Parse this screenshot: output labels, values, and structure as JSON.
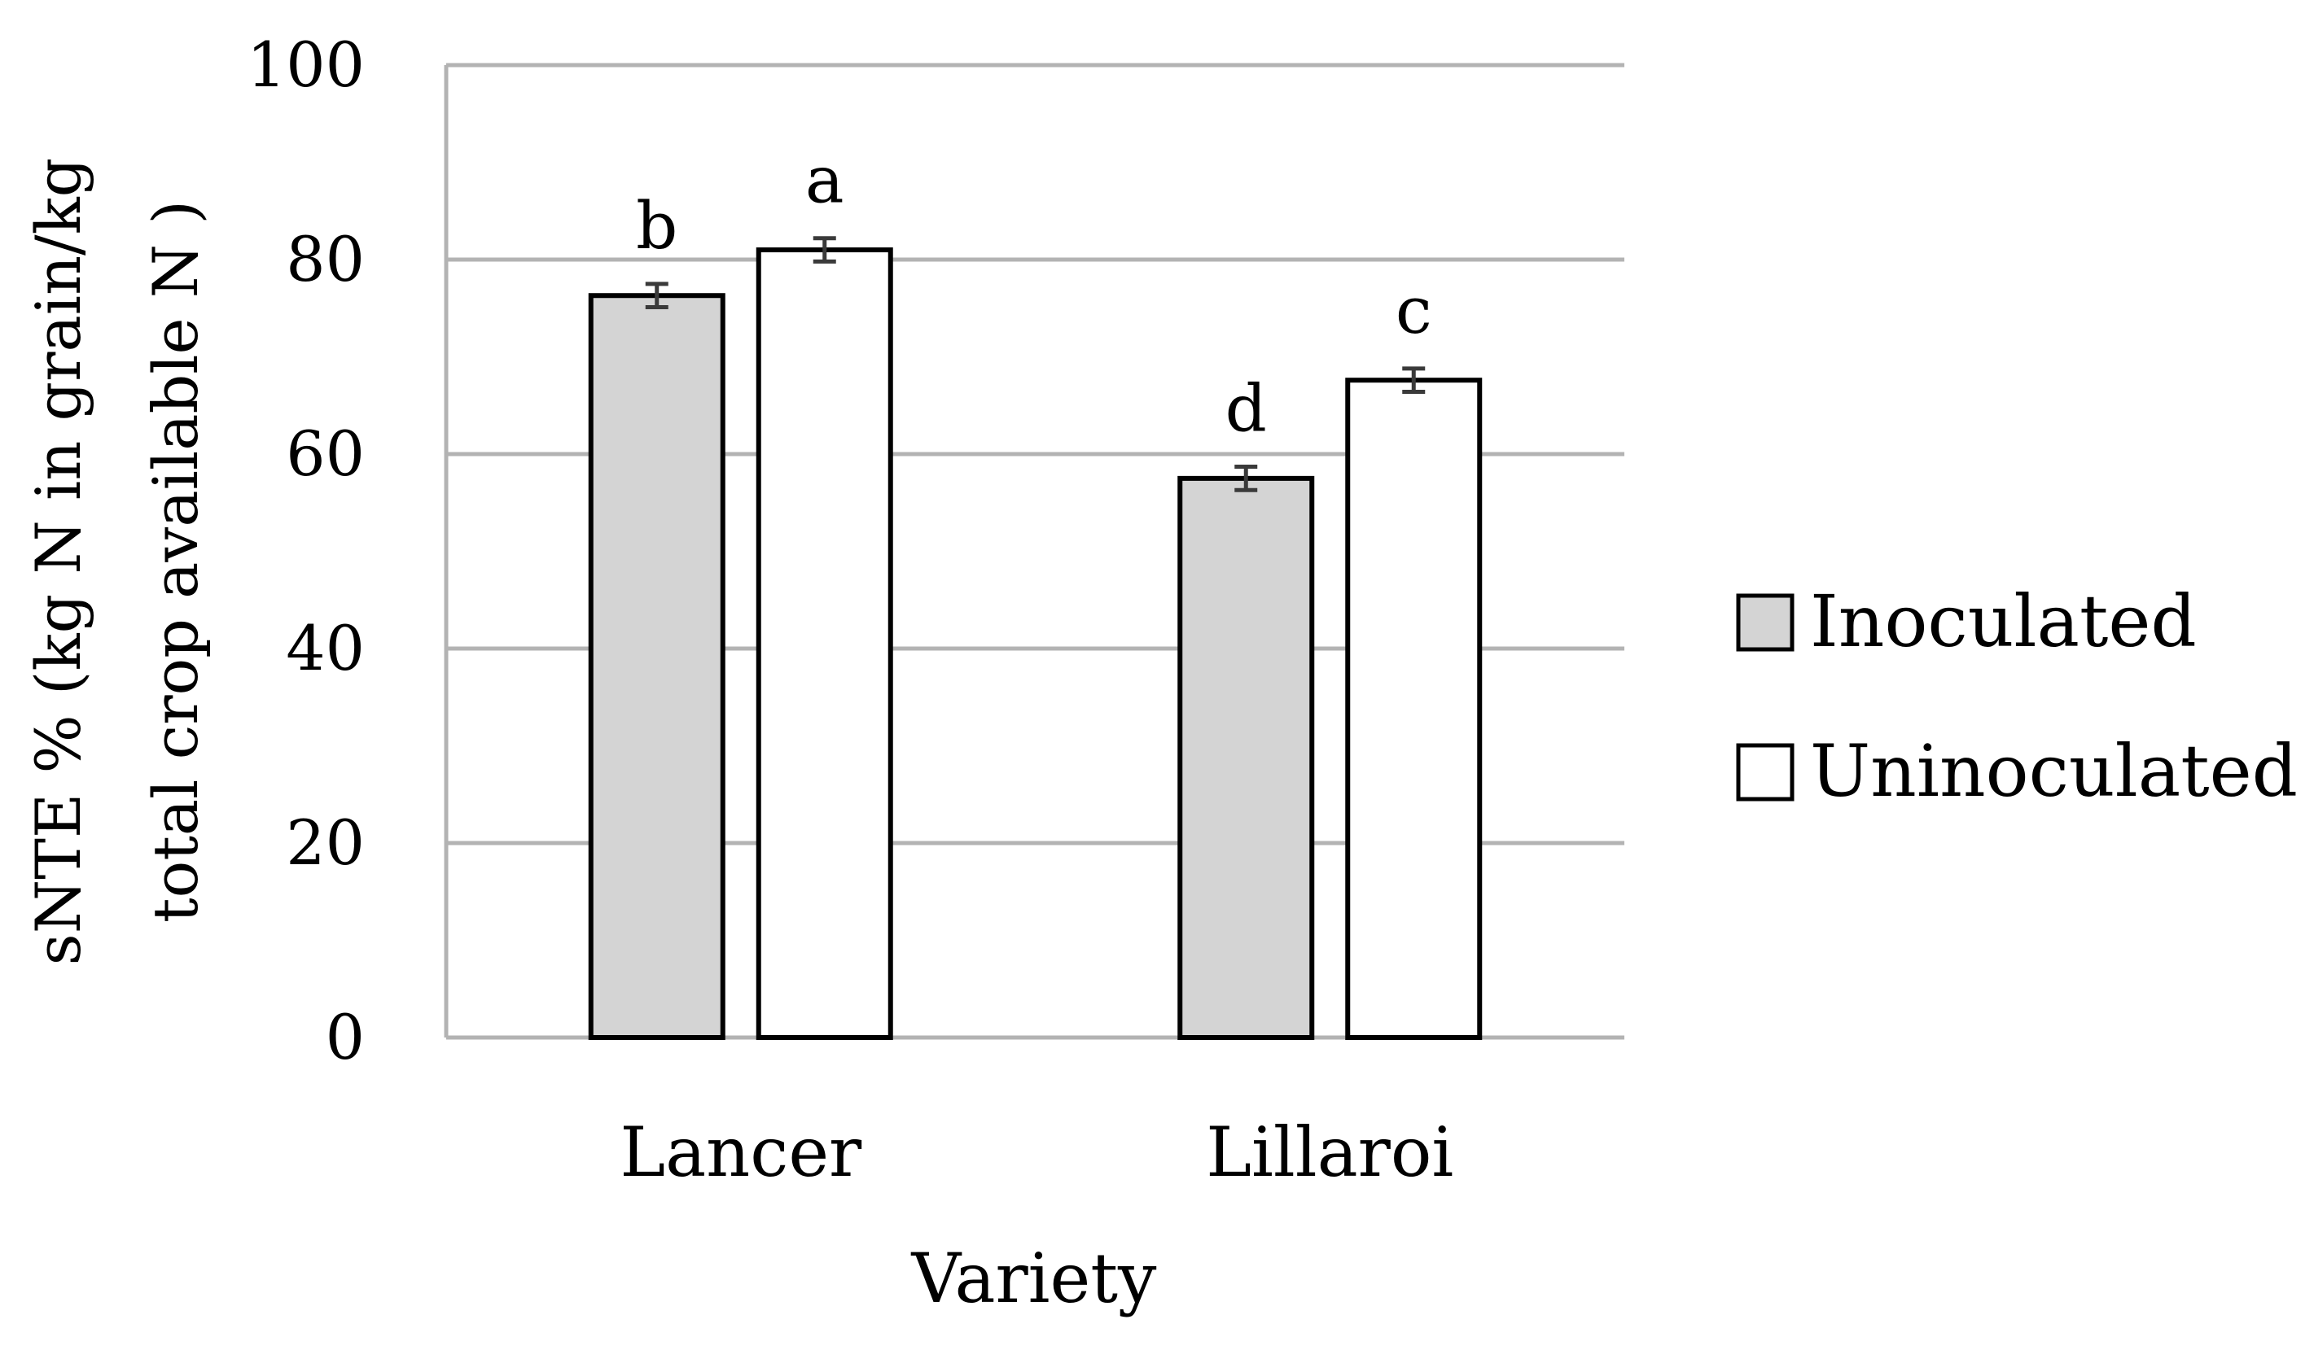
{
  "chart_data": {
    "type": "bar",
    "title": "",
    "xlabel": "Variety",
    "ylabel_line1": "sNTE % (kg N in grain/kg",
    "ylabel_line2": "total crop available N )",
    "ylim": [
      0,
      100
    ],
    "yticks": [
      0,
      20,
      40,
      60,
      80,
      100
    ],
    "grid": true,
    "legend_position": "right",
    "categories": [
      "Lancer",
      "Lillaroi"
    ],
    "series": [
      {
        "name": "Inoculated",
        "values": [
          76.3,
          57.5
        ],
        "errors": [
          1.2,
          1.2
        ],
        "letters": [
          "b",
          "d"
        ],
        "fill": "#d4d4d4"
      },
      {
        "name": "Uninoculated",
        "values": [
          81.0,
          67.6
        ],
        "errors": [
          1.2,
          1.2
        ],
        "letters": [
          "a",
          "c"
        ],
        "fill": "#ffffff"
      }
    ]
  }
}
